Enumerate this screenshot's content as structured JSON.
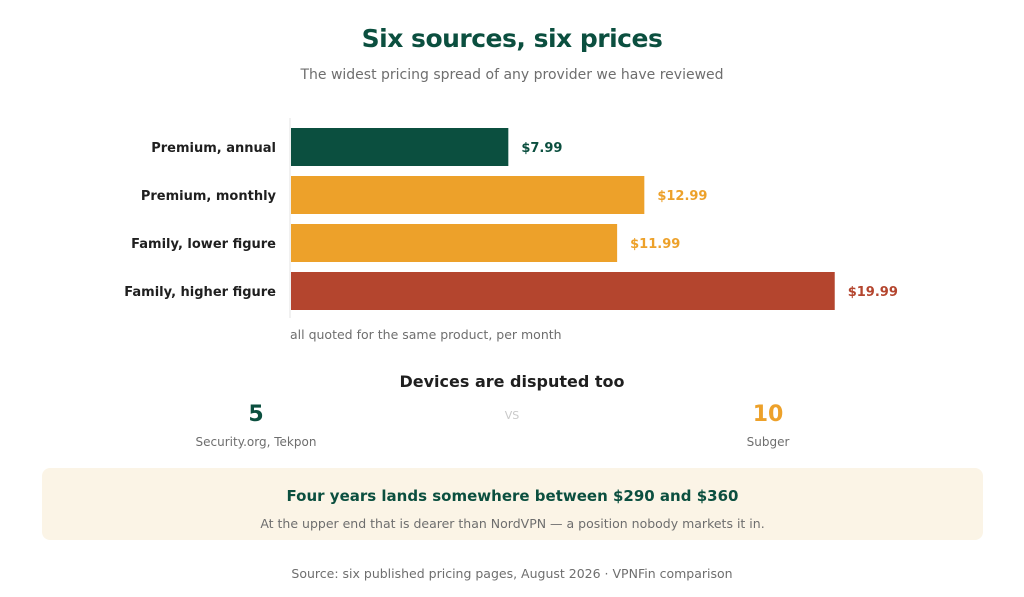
{
  "colors": {
    "green": "#0b4f3f",
    "orange": "#eda12a",
    "red": "#b4452e",
    "callout_bg": "#fbf4e6",
    "text_dark": "#1f1f1f",
    "text_muted": "#6e6e6e"
  },
  "header": {
    "title": "Six sources, six prices",
    "subtitle": "The widest pricing spread of any provider we have reviewed"
  },
  "chart_data": {
    "type": "bar",
    "orientation": "horizontal",
    "categories": [
      "Premium, annual",
      "Premium, monthly",
      "Family, lower figure",
      "Family, higher figure"
    ],
    "values": [
      7.99,
      12.99,
      11.99,
      19.99
    ],
    "value_labels": [
      "$7.99",
      "$12.99",
      "$11.99",
      "$19.99"
    ],
    "bar_colors": [
      "#0b4f3f",
      "#eda12a",
      "#eda12a",
      "#b4452e"
    ],
    "xlim": [
      0,
      20
    ],
    "grid": false,
    "note": "all quoted for the same product, per month"
  },
  "devices": {
    "title": "Devices are disputed too",
    "left": {
      "value": "5",
      "label": "Security.org, Tekpon",
      "color": "#0b4f3f"
    },
    "vs": "VS",
    "right": {
      "value": "10",
      "label": "Subger",
      "color": "#eda12a"
    }
  },
  "callout": {
    "title": "Four years lands somewhere between $290 and $360",
    "body": "At the upper end that is dearer than NordVPN — a position nobody markets it in."
  },
  "footer": {
    "source": "Source: six published pricing pages, August 2026 · VPNFin comparison"
  }
}
